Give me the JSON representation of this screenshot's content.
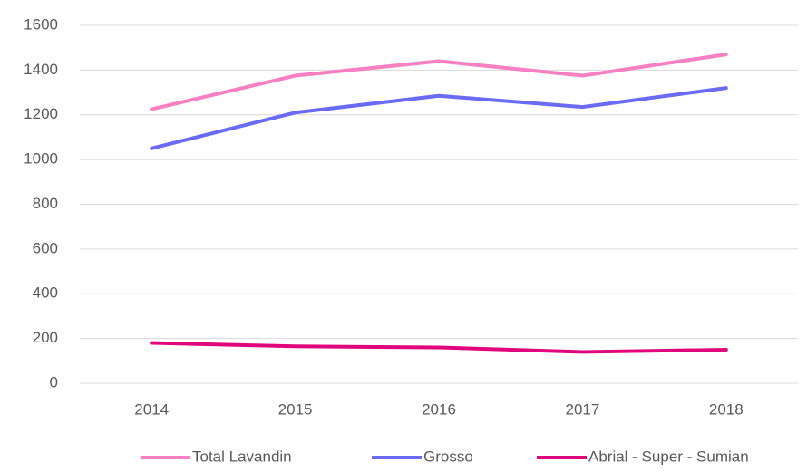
{
  "chart_data": {
    "type": "line",
    "categories": [
      "2014",
      "2015",
      "2016",
      "2017",
      "2018"
    ],
    "series": [
      {
        "name": "Total Lavandin",
        "color": "#f77fc2",
        "values": [
          1225,
          1375,
          1440,
          1375,
          1470
        ]
      },
      {
        "name": "Grosso",
        "color": "#6a6af5",
        "values": [
          1050,
          1210,
          1285,
          1235,
          1320
        ]
      },
      {
        "name": "Abrial - Super - Sumian",
        "color": "#e0077d",
        "values": [
          180,
          165,
          160,
          140,
          150
        ]
      }
    ],
    "ylim": [
      0,
      1600
    ],
    "yticks": [
      0,
      200,
      400,
      600,
      800,
      1000,
      1200,
      1400,
      1600
    ],
    "grid": true,
    "legend": "bottom"
  }
}
